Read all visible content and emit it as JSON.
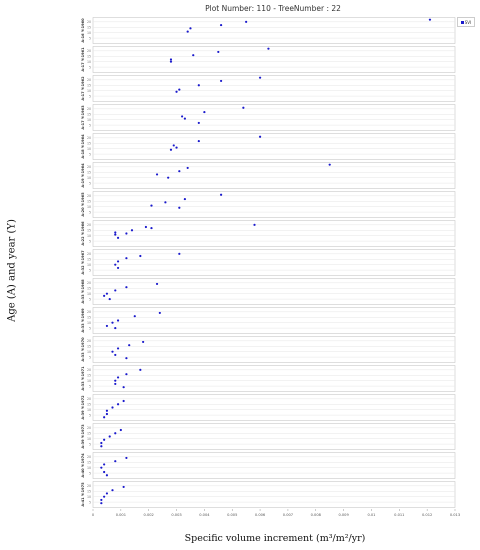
{
  "title": "Plot Number: 110 - TreeNumber : 22",
  "legend_label": "SVI",
  "ylabel": "Age (A) and year (Y)",
  "xlabel": "Specific volume increment (m³/m²/yr)",
  "colors": {
    "points": "#1a1acc",
    "grid": "#e6e6e6",
    "border": "#c8c8c8"
  },
  "chart_data": {
    "type": "scatter",
    "title": "Plot Number: 110 - TreeNumber : 22",
    "xlabel": "Specific volume increment (m³/m²/yr)",
    "ylabel": "Age (A) and year (Y)",
    "xlim": [
      0,
      0.013
    ],
    "x_ticks": [
      "0",
      "0.001",
      "0.002",
      "0.003",
      "0.004",
      "0.005",
      "0.006",
      "0.007",
      "0.008",
      "0.009",
      "0.01",
      "0.011",
      "0.012",
      "0.013"
    ],
    "ylim": [
      0,
      24
    ],
    "y_ticks": [
      "5",
      "10",
      "15",
      "20"
    ],
    "legend": "top-right",
    "grid": true,
    "panels": [
      {
        "label": "A:16 Y:1960",
        "points": [
          [
            0.0121,
            22
          ],
          [
            0.0055,
            20
          ],
          [
            0.0046,
            17
          ],
          [
            0.0035,
            14
          ],
          [
            0.0034,
            11
          ]
        ]
      },
      {
        "label": "A:17 Y:1961",
        "points": [
          [
            0.0063,
            22
          ],
          [
            0.0045,
            19
          ],
          [
            0.0036,
            16
          ],
          [
            0.0028,
            12
          ],
          [
            0.0028,
            10
          ]
        ]
      },
      {
        "label": "A:17 Y:1962",
        "points": [
          [
            0.006,
            22
          ],
          [
            0.0046,
            19
          ],
          [
            0.0038,
            15
          ],
          [
            0.0031,
            11
          ],
          [
            0.003,
            9
          ]
        ]
      },
      {
        "label": "A:17 Y:1963",
        "points": [
          [
            0.0054,
            21
          ],
          [
            0.004,
            17
          ],
          [
            0.0032,
            13
          ],
          [
            0.0033,
            11
          ],
          [
            0.0038,
            7
          ]
        ]
      },
      {
        "label": "A:18 Y:1964",
        "points": [
          [
            0.006,
            21
          ],
          [
            0.0038,
            17
          ],
          [
            0.0029,
            13
          ],
          [
            0.003,
            11
          ],
          [
            0.0028,
            9
          ]
        ]
      },
      {
        "label": "A:19 Y:1964",
        "points": [
          [
            0.0085,
            22
          ],
          [
            0.0034,
            19
          ],
          [
            0.0031,
            16
          ],
          [
            0.0023,
            13
          ],
          [
            0.0027,
            10
          ]
        ]
      },
      {
        "label": "A:20 Y:1965",
        "points": [
          [
            0.0046,
            21
          ],
          [
            0.0033,
            17
          ],
          [
            0.0026,
            14
          ],
          [
            0.0021,
            11
          ],
          [
            0.0031,
            9
          ]
        ]
      },
      {
        "label": "A:22 Y:1966",
        "points": [
          [
            0.0058,
            20
          ],
          [
            0.0019,
            18
          ],
          [
            0.0014,
            15
          ],
          [
            0.0008,
            13
          ],
          [
            0.0008,
            11
          ],
          [
            0.0009,
            8
          ],
          [
            0.0012,
            12
          ],
          [
            0.0021,
            17
          ]
        ]
      },
      {
        "label": "A:32 Y:1967",
        "points": [
          [
            0.0031,
            20
          ],
          [
            0.0017,
            18
          ],
          [
            0.0012,
            16
          ],
          [
            0.0009,
            13
          ],
          [
            0.0008,
            10
          ],
          [
            0.0009,
            7
          ]
        ]
      },
      {
        "label": "A:33 Y:1968",
        "points": [
          [
            0.0023,
            19
          ],
          [
            0.0012,
            16
          ],
          [
            0.0008,
            13
          ],
          [
            0.0005,
            10
          ],
          [
            0.0004,
            8
          ],
          [
            0.0006,
            5
          ]
        ]
      },
      {
        "label": "A:33 Y:1969",
        "points": [
          [
            0.0024,
            19
          ],
          [
            0.0015,
            16
          ],
          [
            0.0009,
            12
          ],
          [
            0.0007,
            10
          ],
          [
            0.0005,
            7
          ],
          [
            0.0008,
            5
          ]
        ]
      },
      {
        "label": "A:33 Y:1970",
        "points": [
          [
            0.0018,
            19
          ],
          [
            0.0013,
            16
          ],
          [
            0.0009,
            13
          ],
          [
            0.0007,
            10
          ],
          [
            0.0008,
            7
          ],
          [
            0.0012,
            4
          ]
        ]
      },
      {
        "label": "A:33 Y:1971",
        "points": [
          [
            0.0017,
            20
          ],
          [
            0.0012,
            16
          ],
          [
            0.0009,
            13
          ],
          [
            0.0008,
            10
          ],
          [
            0.0008,
            7
          ],
          [
            0.0011,
            4
          ]
        ]
      },
      {
        "label": "A:39 Y:1972",
        "points": [
          [
            0.0011,
            18
          ],
          [
            0.0009,
            15
          ],
          [
            0.0007,
            12
          ],
          [
            0.0005,
            9
          ],
          [
            0.0005,
            6
          ],
          [
            0.0004,
            3
          ]
        ]
      },
      {
        "label": "A:39 Y:1973",
        "points": [
          [
            0.001,
            18
          ],
          [
            0.0008,
            15
          ],
          [
            0.0006,
            12
          ],
          [
            0.0004,
            9
          ],
          [
            0.0003,
            6
          ],
          [
            0.0003,
            3
          ]
        ]
      },
      {
        "label": "A:40 Y:1974",
        "points": [
          [
            0.0012,
            19
          ],
          [
            0.0008,
            16
          ],
          [
            0.0004,
            13
          ],
          [
            0.0003,
            10
          ],
          [
            0.0004,
            6
          ],
          [
            0.0005,
            3
          ]
        ]
      },
      {
        "label": "A:41 Y:1975",
        "points": [
          [
            0.0011,
            19
          ],
          [
            0.0007,
            16
          ],
          [
            0.0005,
            13
          ],
          [
            0.0004,
            10
          ],
          [
            0.0003,
            7
          ],
          [
            0.0003,
            4
          ]
        ]
      }
    ]
  }
}
